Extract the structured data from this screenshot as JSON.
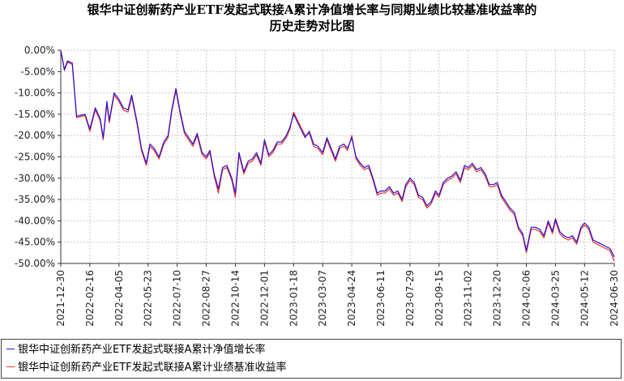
{
  "title_lines": [
    "银华中证创新药产业ETF发起式联接A累计净值增长率与同期业绩比较基准收益率的",
    "历史走势对比图"
  ],
  "chart_data": {
    "type": "line",
    "title": "银华中证创新药产业ETF发起式联接A累计净值增长率与同期业绩比较基准收益率的历史走势对比图",
    "xlabel": "",
    "ylabel": "",
    "ylim": [
      -50,
      0
    ],
    "y_ticks": [
      "0.00%",
      "-5.00%",
      "-10.00%",
      "-15.00%",
      "-20.00%",
      "-25.00%",
      "-30.00%",
      "-35.00%",
      "-40.00%",
      "-45.00%",
      "-50.00%"
    ],
    "x_ticks": [
      "2021-12-30",
      "2022-02-16",
      "2022-04-05",
      "2022-05-23",
      "2022-07-10",
      "2022-08-27",
      "2022-10-14",
      "2022-12-01",
      "2023-01-18",
      "2023-03-07",
      "2023-04-24",
      "2023-06-11",
      "2023-07-29",
      "2023-09-15",
      "2023-11-02",
      "2023-12-20",
      "2024-02-06",
      "2024-03-25",
      "2024-05-12",
      "2024-06-30"
    ],
    "grid": true,
    "legend_position": "bottom",
    "series": [
      {
        "name": "银华中证创新药产业ETF发起式联接A累计净值增长率",
        "color": "#2a0fd6",
        "x": [
          "2021-12-30",
          "2022-01-05",
          "2022-01-10",
          "2022-01-18",
          "2022-01-25",
          "2022-02-08",
          "2022-02-16",
          "2022-02-25",
          "2022-03-05",
          "2022-03-10",
          "2022-03-16",
          "2022-03-20",
          "2022-03-28",
          "2022-04-05",
          "2022-04-12",
          "2022-04-20",
          "2022-04-26",
          "2022-05-05",
          "2022-05-12",
          "2022-05-20",
          "2022-05-26",
          "2022-06-02",
          "2022-06-10",
          "2022-06-18",
          "2022-06-25",
          "2022-07-01",
          "2022-07-08",
          "2022-07-15",
          "2022-07-22",
          "2022-07-29",
          "2022-08-05",
          "2022-08-12",
          "2022-08-20",
          "2022-08-27",
          "2022-09-02",
          "2022-09-09",
          "2022-09-16",
          "2022-09-23",
          "2022-09-30",
          "2022-10-08",
          "2022-10-14",
          "2022-10-20",
          "2022-10-28",
          "2022-11-04",
          "2022-11-11",
          "2022-11-18",
          "2022-11-25",
          "2022-12-01",
          "2022-12-08",
          "2022-12-15",
          "2022-12-22",
          "2022-12-29",
          "2023-01-06",
          "2023-01-12",
          "2023-01-18",
          "2023-01-30",
          "2023-02-06",
          "2023-02-13",
          "2023-02-20",
          "2023-02-27",
          "2023-03-07",
          "2023-03-14",
          "2023-03-21",
          "2023-03-28",
          "2023-04-04",
          "2023-04-11",
          "2023-04-17",
          "2023-04-24",
          "2023-05-01",
          "2023-05-08",
          "2023-05-15",
          "2023-05-22",
          "2023-05-29",
          "2023-06-05",
          "2023-06-11",
          "2023-06-18",
          "2023-06-25",
          "2023-07-02",
          "2023-07-09",
          "2023-07-16",
          "2023-07-22",
          "2023-07-29",
          "2023-08-05",
          "2023-08-12",
          "2023-08-19",
          "2023-08-26",
          "2023-09-02",
          "2023-09-09",
          "2023-09-15",
          "2023-09-22",
          "2023-09-29",
          "2023-10-06",
          "2023-10-13",
          "2023-10-20",
          "2023-10-27",
          "2023-11-02",
          "2023-11-09",
          "2023-11-16",
          "2023-11-23",
          "2023-11-30",
          "2023-12-07",
          "2023-12-14",
          "2023-12-20",
          "2023-12-27",
          "2024-01-03",
          "2024-01-10",
          "2024-01-17",
          "2024-01-24",
          "2024-01-31",
          "2024-02-06",
          "2024-02-14",
          "2024-02-21",
          "2024-02-28",
          "2024-03-06",
          "2024-03-13",
          "2024-03-20",
          "2024-03-25",
          "2024-04-01",
          "2024-04-08",
          "2024-04-15",
          "2024-04-22",
          "2024-04-29",
          "2024-05-06",
          "2024-05-12",
          "2024-05-19",
          "2024-05-26",
          "2024-06-02",
          "2024-06-09",
          "2024-06-16",
          "2024-06-23",
          "2024-06-30"
        ],
        "values": [
          0.0,
          -4.5,
          -2.5,
          -3.0,
          -15.5,
          -15.0,
          -18.5,
          -13.5,
          -16.0,
          -20.5,
          -12.0,
          -16.5,
          -10.0,
          -11.5,
          -13.5,
          -14.0,
          -10.5,
          -17.0,
          -23.0,
          -26.5,
          -22.0,
          -23.0,
          -25.0,
          -21.5,
          -20.0,
          -14.0,
          -9.0,
          -14.5,
          -19.0,
          -20.5,
          -22.0,
          -19.5,
          -24.0,
          -25.0,
          -23.5,
          -29.0,
          -32.5,
          -27.5,
          -27.0,
          -30.0,
          -33.5,
          -24.0,
          -28.5,
          -26.0,
          -25.5,
          -24.0,
          -26.5,
          -21.0,
          -24.5,
          -23.5,
          -21.5,
          -21.5,
          -20.0,
          -18.0,
          -15.0,
          -18.5,
          -20.5,
          -19.0,
          -22.0,
          -22.5,
          -24.0,
          -20.5,
          -23.0,
          -25.5,
          -22.5,
          -22.0,
          -23.0,
          -20.5,
          -25.0,
          -26.5,
          -27.5,
          -27.0,
          -30.0,
          -33.5,
          -33.0,
          -33.0,
          -32.0,
          -33.5,
          -33.0,
          -35.0,
          -31.5,
          -30.0,
          -31.0,
          -34.0,
          -34.5,
          -36.5,
          -35.5,
          -33.0,
          -34.0,
          -31.0,
          -30.0,
          -29.5,
          -28.5,
          -30.5,
          -27.0,
          -27.5,
          -26.5,
          -28.0,
          -27.5,
          -29.0,
          -31.5,
          -31.5,
          -31.0,
          -34.0,
          -35.5,
          -37.0,
          -38.0,
          -41.5,
          -43.0,
          -47.0,
          -41.5,
          -41.5,
          -42.0,
          -43.5,
          -40.0,
          -42.5,
          -39.5,
          -42.5,
          -43.5,
          -44.0,
          -43.5,
          -45.0,
          -41.5,
          -40.5,
          -41.5,
          -44.5,
          -45.0,
          -45.5,
          -46.0,
          -46.5,
          -48.5
        ]
      },
      {
        "name": "银华中证创新药产业ETF发起式联接A累计业绩基准收益率",
        "color": "#e8322c",
        "x": [
          "2021-12-30",
          "2022-01-05",
          "2022-01-10",
          "2022-01-18",
          "2022-01-25",
          "2022-02-08",
          "2022-02-16",
          "2022-02-25",
          "2022-03-05",
          "2022-03-10",
          "2022-03-16",
          "2022-03-20",
          "2022-03-28",
          "2022-04-05",
          "2022-04-12",
          "2022-04-20",
          "2022-04-26",
          "2022-05-05",
          "2022-05-12",
          "2022-05-20",
          "2022-05-26",
          "2022-06-02",
          "2022-06-10",
          "2022-06-18",
          "2022-06-25",
          "2022-07-01",
          "2022-07-08",
          "2022-07-15",
          "2022-07-22",
          "2022-07-29",
          "2022-08-05",
          "2022-08-12",
          "2022-08-20",
          "2022-08-27",
          "2022-09-02",
          "2022-09-09",
          "2022-09-16",
          "2022-09-23",
          "2022-09-30",
          "2022-10-08",
          "2022-10-14",
          "2022-10-20",
          "2022-10-28",
          "2022-11-04",
          "2022-11-11",
          "2022-11-18",
          "2022-11-25",
          "2022-12-01",
          "2022-12-08",
          "2022-12-15",
          "2022-12-22",
          "2022-12-29",
          "2023-01-06",
          "2023-01-12",
          "2023-01-18",
          "2023-01-30",
          "2023-02-06",
          "2023-02-13",
          "2023-02-20",
          "2023-02-27",
          "2023-03-07",
          "2023-03-14",
          "2023-03-21",
          "2023-03-28",
          "2023-04-04",
          "2023-04-11",
          "2023-04-17",
          "2023-04-24",
          "2023-05-01",
          "2023-05-08",
          "2023-05-15",
          "2023-05-22",
          "2023-05-29",
          "2023-06-05",
          "2023-06-11",
          "2023-06-18",
          "2023-06-25",
          "2023-07-02",
          "2023-07-09",
          "2023-07-16",
          "2023-07-22",
          "2023-07-29",
          "2023-08-05",
          "2023-08-12",
          "2023-08-19",
          "2023-08-26",
          "2023-09-02",
          "2023-09-09",
          "2023-09-15",
          "2023-09-22",
          "2023-09-29",
          "2023-10-06",
          "2023-10-13",
          "2023-10-20",
          "2023-10-27",
          "2023-11-02",
          "2023-11-09",
          "2023-11-16",
          "2023-11-23",
          "2023-11-30",
          "2023-12-07",
          "2023-12-14",
          "2023-12-20",
          "2023-12-27",
          "2024-01-03",
          "2024-01-10",
          "2024-01-17",
          "2024-01-24",
          "2024-01-31",
          "2024-02-06",
          "2024-02-14",
          "2024-02-21",
          "2024-02-28",
          "2024-03-06",
          "2024-03-13",
          "2024-03-20",
          "2024-03-25",
          "2024-04-01",
          "2024-04-08",
          "2024-04-15",
          "2024-04-22",
          "2024-04-29",
          "2024-05-06",
          "2024-05-12",
          "2024-05-19",
          "2024-05-26",
          "2024-06-02",
          "2024-06-09",
          "2024-06-16",
          "2024-06-23",
          "2024-06-30"
        ],
        "values": [
          0.0,
          -4.8,
          -2.8,
          -3.3,
          -15.8,
          -15.3,
          -19.0,
          -14.0,
          -16.5,
          -21.0,
          -12.5,
          -17.0,
          -10.5,
          -12.0,
          -14.0,
          -14.5,
          -11.0,
          -17.5,
          -23.5,
          -27.0,
          -22.5,
          -23.5,
          -25.5,
          -22.0,
          -20.5,
          -14.5,
          -9.5,
          -15.0,
          -19.5,
          -21.0,
          -22.5,
          -20.0,
          -24.5,
          -25.5,
          -24.0,
          -29.5,
          -33.5,
          -28.0,
          -27.5,
          -30.5,
          -34.5,
          -24.5,
          -29.0,
          -26.5,
          -26.0,
          -24.5,
          -27.0,
          -21.5,
          -25.0,
          -24.0,
          -22.0,
          -22.0,
          -20.5,
          -18.5,
          -14.5,
          -18.0,
          -20.0,
          -19.5,
          -22.5,
          -23.0,
          -24.5,
          -21.0,
          -23.5,
          -26.0,
          -23.0,
          -22.5,
          -23.5,
          -20.0,
          -25.5,
          -27.0,
          -28.0,
          -27.5,
          -30.5,
          -34.0,
          -33.5,
          -33.5,
          -32.5,
          -34.0,
          -33.5,
          -35.5,
          -32.0,
          -30.5,
          -31.5,
          -34.5,
          -35.0,
          -37.0,
          -36.0,
          -33.5,
          -34.5,
          -31.5,
          -30.5,
          -30.0,
          -29.0,
          -31.0,
          -27.5,
          -28.0,
          -27.0,
          -28.5,
          -28.0,
          -29.5,
          -32.0,
          -32.0,
          -31.5,
          -34.5,
          -36.0,
          -37.5,
          -38.5,
          -42.0,
          -43.5,
          -47.5,
          -42.0,
          -42.0,
          -42.5,
          -44.0,
          -40.5,
          -43.0,
          -40.0,
          -43.0,
          -44.0,
          -44.5,
          -44.0,
          -45.5,
          -42.0,
          -41.0,
          -42.0,
          -45.0,
          -45.5,
          -46.0,
          -46.5,
          -47.0,
          -49.5
        ]
      }
    ]
  },
  "legend": {
    "items": [
      {
        "label": "银华中证创新药产业ETF发起式联接A累计净值增长率",
        "color": "#2a0fd6"
      },
      {
        "label": "银华中证创新药产业ETF发起式联接A累计业绩基准收益率",
        "color": "#e8322c"
      }
    ]
  }
}
